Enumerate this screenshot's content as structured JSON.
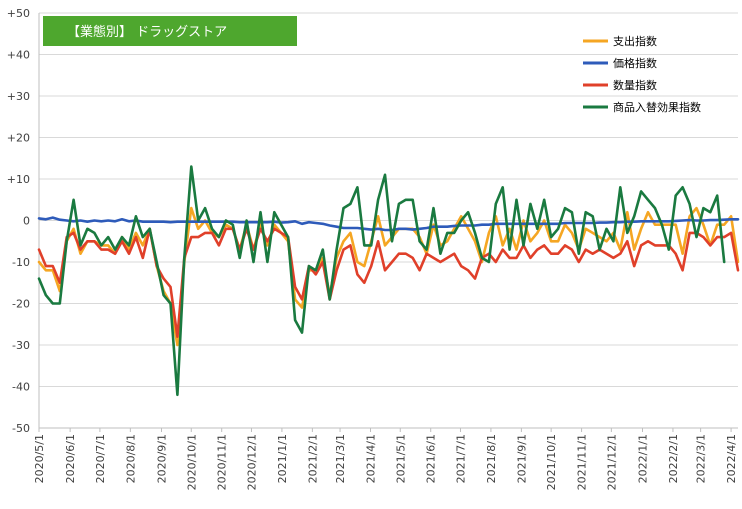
{
  "chart_data": {
    "type": "line",
    "title": "【業態別】 ドラッグストア",
    "colors": {
      "title_box": "#4EA72E",
      "支出指数": "#F5A623",
      "価格指数": "#2E5BBA",
      "数量指数": "#E0402A",
      "商品入替効果指数": "#1A7A40"
    },
    "ylim": [
      -50,
      50
    ],
    "y_ticks": [
      {
        "value": 50,
        "label": "+50"
      },
      {
        "value": 40,
        "label": "+40"
      },
      {
        "value": 30,
        "label": "+30"
      },
      {
        "value": 20,
        "label": "+20"
      },
      {
        "value": 10,
        "label": "+10"
      },
      {
        "value": 0,
        "label": "0"
      },
      {
        "value": -10,
        "label": "-10"
      },
      {
        "value": -20,
        "label": "-20"
      },
      {
        "value": -30,
        "label": "-30"
      },
      {
        "value": -40,
        "label": "-40"
      },
      {
        "value": -50,
        "label": "-50"
      }
    ],
    "x_ticks": [
      {
        "week": 0,
        "label": "2020/5/1"
      },
      {
        "week": 4.5,
        "label": "2020/6/1"
      },
      {
        "week": 8.8,
        "label": "2020/7/1"
      },
      {
        "week": 13.2,
        "label": "2020/8/1"
      },
      {
        "week": 17.7,
        "label": "2020/9/1"
      },
      {
        "week": 22.0,
        "label": "2020/10/1"
      },
      {
        "week": 26.4,
        "label": "2020/11/1"
      },
      {
        "week": 30.7,
        "label": "2020/12/1"
      },
      {
        "week": 35.1,
        "label": "2021/1/1"
      },
      {
        "week": 39.5,
        "label": "2021/2/1"
      },
      {
        "week": 43.5,
        "label": "2021/3/1"
      },
      {
        "week": 47.9,
        "label": "2021/4/1"
      },
      {
        "week": 52.2,
        "label": "2021/5/1"
      },
      {
        "week": 56.6,
        "label": "2021/6/1"
      },
      {
        "week": 60.9,
        "label": "2021/7/1"
      },
      {
        "week": 65.3,
        "label": "2021/8/1"
      },
      {
        "week": 69.7,
        "label": "2021/9/1"
      },
      {
        "week": 74.0,
        "label": "2021/10/1"
      },
      {
        "week": 78.4,
        "label": "2021/11/1"
      },
      {
        "week": 82.7,
        "label": "2021/12/1"
      },
      {
        "week": 87.2,
        "label": "2022/1/1"
      },
      {
        "week": 91.6,
        "label": "2022/2/1"
      },
      {
        "week": 95.6,
        "label": "2022/3/1"
      },
      {
        "week": 100.0,
        "label": "2022/4/1"
      }
    ],
    "legend_position": "top-right",
    "series": [
      {
        "name": "支出指数",
        "values": [
          -10,
          -12,
          -12,
          -17,
          -5,
          -2,
          -8,
          -5,
          -5,
          -6,
          -6,
          -8,
          -4,
          -7,
          -3,
          -6,
          -2,
          -11,
          -17,
          -20,
          -30,
          -10,
          3,
          -2,
          0,
          -3,
          -4,
          -1,
          -2,
          -7,
          -1,
          -7,
          -1,
          -6,
          -1,
          -3,
          -5,
          -19,
          -21,
          -12,
          -12,
          -9,
          -18,
          -9,
          -5,
          -3,
          -10,
          -11,
          -5,
          1,
          -6,
          -4,
          -2,
          -2,
          -2,
          -4,
          -8,
          -1,
          -6,
          -5,
          -2,
          1,
          -2,
          -5,
          -10,
          -3,
          1,
          -6,
          -2,
          -7,
          0,
          -5,
          -3,
          0,
          -5,
          -5,
          -1,
          -3,
          -7,
          -2,
          -3,
          -4,
          -5,
          -3,
          -7,
          2,
          -7,
          -2,
          2,
          -1,
          -1,
          -1,
          -1,
          -8,
          1,
          3,
          -1,
          -6,
          -1,
          -1,
          1,
          -10
        ]
      },
      {
        "name": "価格指数",
        "values": [
          0.5,
          0.3,
          0.7,
          0.2,
          0,
          -0.2,
          0,
          -0.3,
          0,
          -0.2,
          0,
          -0.2,
          0.3,
          -0.2,
          0,
          -0.3,
          -0.3,
          -0.3,
          -0.3,
          -0.4,
          -0.3,
          -0.3,
          -0.3,
          -0.3,
          -0.3,
          -0.3,
          -0.3,
          -0.3,
          -0.3,
          -0.4,
          -0.4,
          -0.4,
          -0.4,
          -0.4,
          -0.3,
          -0.5,
          -0.4,
          -0.2,
          -0.8,
          -0.4,
          -0.6,
          -0.8,
          -1.2,
          -1.5,
          -1.8,
          -1.8,
          -1.8,
          -2.0,
          -2.2,
          -2.0,
          -2.3,
          -2.3,
          -2.0,
          -2.0,
          -2.2,
          -2.0,
          -1.8,
          -1.5,
          -1.5,
          -1.5,
          -1.3,
          -1.2,
          -1.2,
          -1.2,
          -1.0,
          -1.0,
          -0.8,
          -0.8,
          -0.8,
          -0.8,
          -0.8,
          -0.8,
          -0.8,
          -0.8,
          -0.8,
          -0.8,
          -0.6,
          -0.6,
          -0.6,
          -0.6,
          -0.6,
          -0.5,
          -0.5,
          -0.4,
          -0.4,
          -0.3,
          -0.3,
          -0.2,
          -0.2,
          -0.2,
          -0.2,
          -0.2,
          -0.1,
          0,
          0.1,
          0,
          0,
          0.1,
          0.1,
          0.2,
          0.3,
          0.3
        ]
      },
      {
        "name": "数量指数",
        "values": [
          -7,
          -11,
          -11,
          -15,
          -4,
          -3,
          -7,
          -5,
          -5,
          -7,
          -7,
          -8,
          -5,
          -8,
          -4,
          -9,
          -2,
          -11,
          -14,
          -16,
          -28,
          -9,
          -4,
          -4,
          -3,
          -3,
          -6,
          -2,
          -2,
          -7,
          -2,
          -7,
          -2,
          -5,
          -2,
          -3,
          -4,
          -16,
          -19,
          -11,
          -13,
          -10,
          -19,
          -12,
          -7,
          -6,
          -13,
          -15,
          -11,
          -5,
          -12,
          -10,
          -8,
          -8,
          -9,
          -12,
          -8,
          -9,
          -10,
          -9,
          -8,
          -11,
          -12,
          -14,
          -9,
          -8,
          -10,
          -7,
          -9,
          -9,
          -6,
          -9,
          -7,
          -6,
          -8,
          -8,
          -6,
          -7,
          -10,
          -7,
          -8,
          -7,
          -8,
          -9,
          -8,
          -5,
          -11,
          -6,
          -5,
          -6,
          -6,
          -6,
          -8,
          -12,
          -3,
          -3,
          -4,
          -6,
          -4,
          -4,
          -3,
          -12
        ]
      },
      {
        "name": "商品入替効果指数",
        "values": [
          -14,
          -18,
          -20,
          -20,
          -5,
          5,
          -6,
          -2,
          -3,
          -6,
          -4,
          -7,
          -4,
          -6,
          1,
          -4,
          -2,
          -10,
          -18,
          -20,
          -42,
          -9,
          13,
          0,
          3,
          -2,
          -4,
          0,
          -1,
          -9,
          0,
          -10,
          2,
          -10,
          2,
          -1,
          -4,
          -24,
          -27,
          -11,
          -12,
          -7,
          -19,
          -7,
          3,
          4,
          8,
          -6,
          -6,
          5,
          11,
          -5,
          4,
          5,
          5,
          -5,
          -7,
          3,
          -8,
          -3,
          -3,
          0,
          2,
          -3,
          -9,
          -10,
          4,
          8,
          -7,
          5,
          -6,
          4,
          -2,
          5,
          -4,
          -2,
          3,
          2,
          -8,
          2,
          1,
          -7,
          -2,
          -5,
          8,
          -3,
          1,
          7,
          5,
          3,
          -1,
          -7,
          6,
          8,
          4,
          -4,
          3,
          2,
          6,
          -10
        ]
      }
    ]
  }
}
